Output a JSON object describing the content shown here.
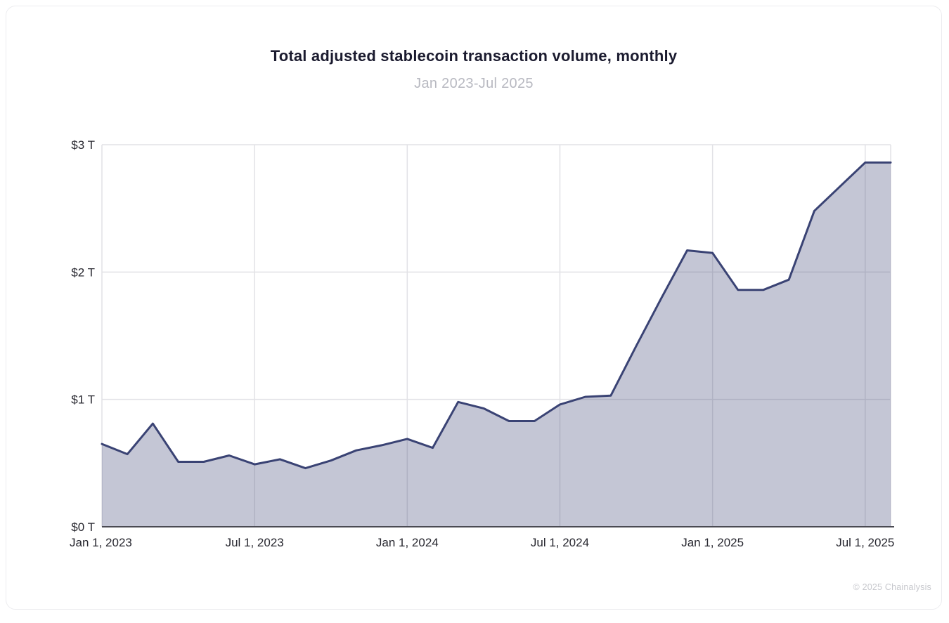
{
  "header": {
    "title": "Total adjusted stablecoin transaction volume, monthly",
    "subtitle": "Jan 2023-Jul 2025"
  },
  "footer": {
    "credit": "© 2025 Chainalysis"
  },
  "colors": {
    "line": "#3a4374",
    "fill": "rgba(58,67,116,0.30)",
    "grid": "#e2e2e6",
    "axis": "#4a4a52",
    "title_text": "#1b1b2f",
    "subtitle_text": "#b8b9c1",
    "tick_text": "#27272f",
    "credit_text": "#c7c8cd"
  },
  "chart_data": {
    "type": "area",
    "title": "Total adjusted stablecoin transaction volume, monthly",
    "subtitle": "Jan 2023-Jul 2025",
    "unit": "trillions USD",
    "x": [
      "Jan 2023",
      "Feb 2023",
      "Mar 2023",
      "Apr 2023",
      "May 2023",
      "Jun 2023",
      "Jul 2023",
      "Aug 2023",
      "Sep 2023",
      "Oct 2023",
      "Nov 2023",
      "Dec 2023",
      "Jan 2024",
      "Feb 2024",
      "Mar 2024",
      "Apr 2024",
      "May 2024",
      "Jun 2024",
      "Jul 2024",
      "Aug 2024",
      "Sep 2024",
      "Oct 2024",
      "Nov 2024",
      "Dec 2024",
      "Jan 2025",
      "Feb 2025",
      "Mar 2025",
      "Apr 2025",
      "May 2025",
      "Jun 2025",
      "Jul 2025"
    ],
    "values": [
      0.65,
      0.57,
      0.81,
      0.51,
      0.51,
      0.56,
      0.49,
      0.53,
      0.46,
      0.52,
      0.6,
      0.64,
      0.69,
      0.62,
      0.98,
      0.93,
      0.83,
      0.83,
      0.96,
      1.02,
      1.03,
      1.42,
      1.8,
      2.17,
      2.15,
      1.86,
      1.86,
      1.94,
      2.48,
      2.67,
      2.86
    ],
    "ylim": [
      0,
      3
    ],
    "ytick_labels": [
      "$0 T",
      "$1 T",
      "$2 T",
      "$3 T"
    ],
    "ytick_values": [
      0,
      1,
      2,
      3
    ],
    "xtick_labels": [
      "Jan 1, 2023",
      "Jul 1, 2023",
      "Jan 1, 2024",
      "Jul 1, 2024",
      "Jan 1, 2025",
      "Jul 1, 2025"
    ],
    "xtick_month_index": [
      0,
      6,
      12,
      18,
      24,
      30
    ],
    "grid": true,
    "legend": "none",
    "extend_last_value_to_right_edge": true
  }
}
